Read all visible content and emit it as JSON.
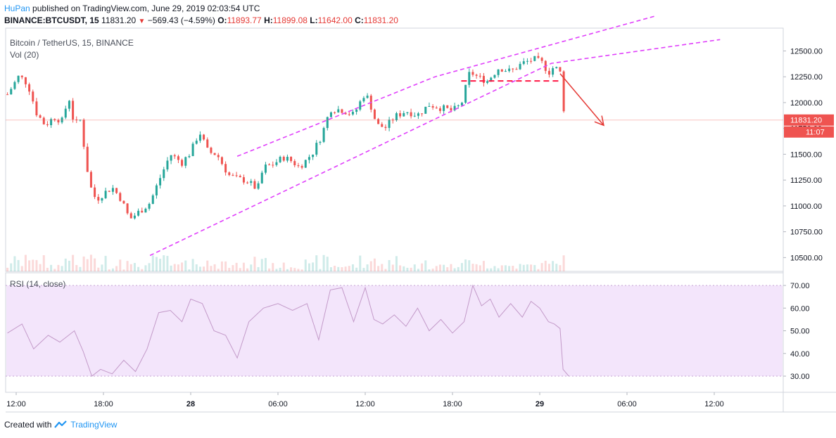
{
  "header": {
    "author": "HuPan",
    "published_text": "published on TradingView.com, June 29, 2019 02:03:54 UTC",
    "symbol_line": "BINANCE:BTCUSDT, 15",
    "last": "11831.20",
    "change": "−569.43 (−4.59%)",
    "o_label": "O:",
    "o_value": "11893.77",
    "h_label": "H:",
    "h_value": "11899.08",
    "l_label": "L:",
    "l_value": "11642.00",
    "c_label": "C:",
    "c_value": "11831.20"
  },
  "legends": {
    "main": "Bitcoin / TetherUS, 15, BINANCE",
    "volume": "Vol (20)",
    "rsi": "RSI (14, close)"
  },
  "price_labels": {
    "last_price": "11831.20",
    "countdown": "11:07"
  },
  "footer": {
    "created_with": "Created with",
    "brand": "TradingView"
  },
  "colors": {
    "up": "#26a69a",
    "down": "#ef5350",
    "pattern_lines": "#e040fb",
    "arrow": "#e53935",
    "rsi_line": "#c39ac9",
    "rsi_band": "#f3e5fb",
    "last_price_bg": "#ef5350"
  },
  "chart_data": [
    {
      "type": "candlestick",
      "title": "Bitcoin / TetherUS, 15, BINANCE",
      "ylim": [
        10380,
        12680
      ],
      "y_ticks": [
        10500,
        10750,
        11000,
        11250,
        11500,
        11750,
        12000,
        12250,
        12500
      ],
      "y_tick_labels": [
        "10500.00",
        "10750.00",
        "11000.00",
        "11250.00",
        "11500.00",
        "11750.00",
        "12000.00",
        "12250.00",
        "12500.00"
      ],
      "x_ticks": [
        "12:00",
        "18:00",
        "28",
        "06:00",
        "12:00",
        "18:00",
        "29",
        "06:00",
        "12:00"
      ],
      "x_tick_times_h": [
        0,
        6,
        12,
        18,
        24,
        30,
        36,
        42,
        48
      ],
      "candle_interval_h": 0.25,
      "start_time_h": -0.6,
      "start_open": 12080,
      "close_path": [
        [
          -0.6,
          12080
        ],
        [
          0.2,
          12260
        ],
        [
          0.8,
          12180
        ],
        [
          1.4,
          11900
        ],
        [
          2.0,
          11780
        ],
        [
          2.6,
          11860
        ],
        [
          3.2,
          11820
        ],
        [
          3.6,
          12070
        ],
        [
          4.0,
          11780
        ],
        [
          4.4,
          11830
        ],
        [
          4.8,
          11450
        ],
        [
          5.0,
          11240
        ],
        [
          5.2,
          11150
        ],
        [
          5.5,
          11060
        ],
        [
          6.0,
          11120
        ],
        [
          6.6,
          11180
        ],
        [
          7.2,
          11070
        ],
        [
          7.8,
          10870
        ],
        [
          8.6,
          10960
        ],
        [
          9.2,
          11030
        ],
        [
          9.8,
          11240
        ],
        [
          10.6,
          11500
        ],
        [
          11.4,
          11420
        ],
        [
          12.0,
          11520
        ],
        [
          12.6,
          11720
        ],
        [
          13.2,
          11520
        ],
        [
          13.8,
          11500
        ],
        [
          14.6,
          11300
        ],
        [
          15.2,
          11260
        ],
        [
          15.8,
          11250
        ],
        [
          16.6,
          11160
        ],
        [
          17.0,
          11370
        ],
        [
          17.6,
          11400
        ],
        [
          18.4,
          11470
        ],
        [
          19.0,
          11430
        ],
        [
          19.4,
          11380
        ],
        [
          19.8,
          11420
        ],
        [
          20.4,
          11520
        ],
        [
          21.0,
          11680
        ],
        [
          21.6,
          11940
        ],
        [
          22.4,
          11930
        ],
        [
          23.2,
          11880
        ],
        [
          24.0,
          12100
        ],
        [
          24.4,
          11960
        ],
        [
          24.8,
          11780
        ],
        [
          25.4,
          11760
        ],
        [
          26.0,
          11860
        ],
        [
          26.8,
          11920
        ],
        [
          27.6,
          11880
        ],
        [
          28.4,
          11980
        ],
        [
          29.2,
          11950
        ],
        [
          30.0,
          11920
        ],
        [
          30.6,
          11980
        ],
        [
          31.2,
          12300
        ],
        [
          31.8,
          12240
        ],
        [
          32.4,
          12210
        ],
        [
          33.2,
          12340
        ],
        [
          34.0,
          12300
        ],
        [
          34.8,
          12380
        ],
        [
          35.6,
          12420
        ],
        [
          36.2,
          12380
        ],
        [
          36.6,
          12290
        ],
        [
          37.0,
          12350
        ],
        [
          37.4,
          12290
        ],
        [
          37.6,
          11980
        ],
        [
          37.8,
          11831.2
        ]
      ],
      "pattern": {
        "channel_upper": [
          [
            15.2,
            11480
          ],
          [
            28.8,
            12250
          ],
          [
            44.0,
            12840
          ]
        ],
        "channel_lower": [
          [
            9.2,
            10520
          ],
          [
            36.8,
            12380
          ],
          [
            48.4,
            12610
          ]
        ],
        "resistance_segment": [
          [
            30.6,
            12210
          ],
          [
            37.4,
            12210
          ]
        ],
        "breakdown_arrow": [
          [
            37.4,
            12280
          ],
          [
            40.4,
            11780
          ]
        ]
      },
      "volume": {
        "type": "bar",
        "ylim": [
          0,
          1800
        ],
        "note": "volume bars shown under price candles"
      }
    },
    {
      "type": "line",
      "title": "RSI (14, close)",
      "ylim": [
        26,
        73
      ],
      "y_ticks": [
        30,
        40,
        50,
        60,
        70
      ],
      "y_tick_labels": [
        "30.00",
        "40.00",
        "50.00",
        "60.00",
        "70.00"
      ],
      "band": [
        30,
        70
      ],
      "x_time_h": [
        -0.6,
        0.4,
        1.2,
        2.2,
        3.0,
        4.0,
        4.6,
        5.2,
        5.8,
        6.6,
        7.4,
        8.2,
        9.0,
        9.8,
        10.6,
        11.4,
        12.0,
        12.8,
        13.6,
        14.4,
        15.2,
        16.0,
        17.0,
        18.0,
        19.0,
        20.0,
        20.8,
        21.6,
        22.4,
        23.2,
        24.0,
        24.6,
        25.2,
        26.0,
        26.8,
        27.6,
        28.4,
        29.2,
        30.0,
        30.8,
        31.4,
        32.0,
        32.6,
        33.2,
        34.0,
        34.8,
        35.4,
        36.0,
        36.6,
        37.0,
        37.4,
        37.6,
        38.0
      ],
      "values": [
        49,
        53,
        42,
        48,
        45,
        50,
        41,
        30,
        33,
        31,
        37,
        32,
        42,
        58,
        59,
        54,
        64,
        62,
        50,
        48,
        38,
        54,
        60,
        62,
        59,
        62,
        46,
        68,
        69,
        54,
        69,
        55,
        53,
        57,
        52,
        60,
        50,
        55,
        49,
        54,
        70,
        61,
        64,
        56,
        62,
        56,
        63,
        60,
        54,
        53,
        51,
        33,
        30
      ]
    }
  ]
}
